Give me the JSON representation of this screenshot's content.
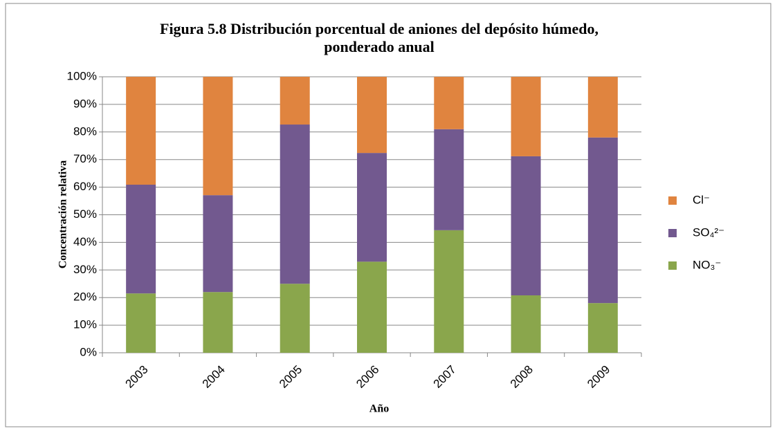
{
  "chart_data": {
    "type": "stacked_bar",
    "title": [
      "Figura 5.8 Distribución porcentual de aniones del depósito húmedo,",
      "ponderado anual"
    ],
    "xlabel": "Año",
    "ylabel": "Concentración relativa",
    "categories": [
      "2003",
      "2004",
      "2005",
      "2006",
      "2007",
      "2008",
      "2009"
    ],
    "series": [
      {
        "name": "NO₃⁻",
        "color": "#8aa64c",
        "values": [
          21.5,
          22,
          25,
          33,
          44.4,
          20.8,
          18
        ]
      },
      {
        "name": "SO₄²⁻",
        "color": "#72598f",
        "values": [
          39.4,
          35.1,
          57.7,
          39.4,
          36.6,
          50.4,
          60
        ]
      },
      {
        "name": "Cl⁻",
        "color": "#e0843f",
        "values": [
          39.1,
          42.9,
          17.3,
          27.6,
          19,
          28.8,
          22
        ]
      }
    ],
    "ylim": [
      0,
      100
    ],
    "yticks": [
      {
        "value": 0,
        "label": "0%"
      },
      {
        "value": 10,
        "label": "10%"
      },
      {
        "value": 20,
        "label": "20%"
      },
      {
        "value": 30,
        "label": "30%"
      },
      {
        "value": 40,
        "label": "40%"
      },
      {
        "value": 50,
        "label": "50%"
      },
      {
        "value": 60,
        "label": "60%"
      },
      {
        "value": 70,
        "label": "70%"
      },
      {
        "value": 80,
        "label": "80%"
      },
      {
        "value": 90,
        "label": "90%"
      },
      {
        "value": 100,
        "label": "100%"
      }
    ],
    "grid": true,
    "legend": "right"
  }
}
